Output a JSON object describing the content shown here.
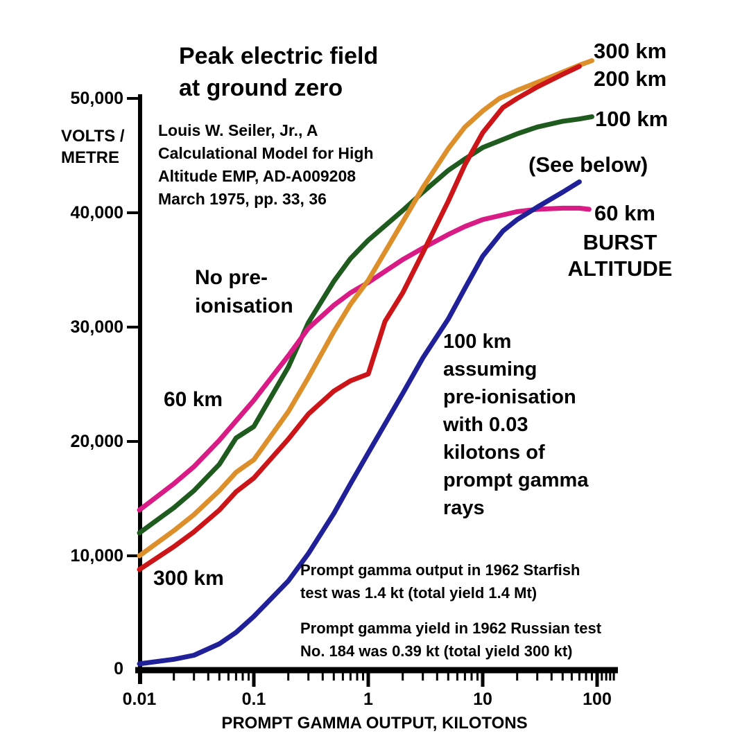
{
  "title": {
    "line1": "Peak electric field",
    "line2": "at ground zero"
  },
  "citation": [
    "Louis W. Seiler, Jr., A",
    "Calculational Model for High",
    "Altitude EMP, AD-A009208",
    "March 1975, pp. 33, 36"
  ],
  "y_axis": {
    "unit_line1": "VOLTS /",
    "unit_line2": "METRE",
    "tick_labels": [
      "50,000",
      "40,000",
      "30,000",
      "20,000",
      "10,000",
      "0"
    ],
    "tick_values": [
      50000,
      40000,
      30000,
      20000,
      10000,
      0
    ]
  },
  "x_axis": {
    "title": "PROMPT GAMMA OUTPUT, KILOTONS",
    "tick_labels": [
      "0.01",
      "0.1",
      "1",
      "10",
      "100"
    ],
    "tick_values": [
      0.01,
      0.1,
      1,
      10,
      100
    ]
  },
  "labels": {
    "no_preionisation_line1": "No pre-",
    "no_preionisation_line2": "ionisation",
    "curve_60km_left": "60 km",
    "curve_300km_left": "300 km",
    "curve_300km_right": "300 km",
    "curve_200km_right": "200 km",
    "curve_100km_right": "100 km",
    "see_below": "(See below)",
    "curve_60km_right": "60 km",
    "burst_line1": "BURST",
    "burst_line2": "ALTITUDE"
  },
  "annotations": {
    "preionisation_lines": [
      "100 km",
      "assuming",
      "pre-ionisation",
      "with 0.03",
      "kilotons of",
      "prompt gamma",
      "rays"
    ],
    "starfish_lines": [
      "Prompt gamma output in 1962 Starfish",
      "test was 1.4 kt (total yield 1.4 Mt)"
    ],
    "russian_lines": [
      "Prompt gamma yield in 1962 Russian test",
      "No. 184 was 0.39 kt (total yield 300 kt)"
    ]
  },
  "chart_data": {
    "type": "line",
    "title": "Peak electric field at ground zero",
    "xlabel": "PROMPT GAMMA OUTPUT, KILOTONS",
    "ylabel": "VOLTS / METRE",
    "x_scale": "log",
    "xlim": [
      0.01,
      150
    ],
    "ylim": [
      0,
      55000
    ],
    "x_ticks": [
      0.01,
      0.1,
      1,
      10,
      100
    ],
    "y_ticks": [
      0,
      10000,
      20000,
      30000,
      40000,
      50000
    ],
    "grid": false,
    "legend_position": "labels-at-line-ends",
    "axis_color": "#000000",
    "series": [
      {
        "id": "curve-100km",
        "name": "100 km burst altitude (no pre-ionisation)",
        "label": "100 km",
        "color": "#1F5B1F",
        "points": [
          [
            0.01,
            12000
          ],
          [
            0.02,
            14200
          ],
          [
            0.03,
            15700
          ],
          [
            0.05,
            18000
          ],
          [
            0.07,
            20300
          ],
          [
            0.1,
            21300
          ],
          [
            0.2,
            26500
          ],
          [
            0.3,
            30400
          ],
          [
            0.5,
            34000
          ],
          [
            0.7,
            36000
          ],
          [
            1,
            37600
          ],
          [
            2,
            40200
          ],
          [
            3,
            41800
          ],
          [
            5,
            43700
          ],
          [
            7,
            44700
          ],
          [
            10,
            45700
          ],
          [
            20,
            46900
          ],
          [
            30,
            47500
          ],
          [
            50,
            48000
          ],
          [
            70,
            48200
          ],
          [
            90,
            48400
          ]
        ]
      },
      {
        "id": "curve-60km",
        "name": "60 km burst altitude",
        "label": "60 km",
        "color": "#D81B85",
        "points": [
          [
            0.01,
            14000
          ],
          [
            0.02,
            16300
          ],
          [
            0.03,
            17800
          ],
          [
            0.05,
            20100
          ],
          [
            0.07,
            21800
          ],
          [
            0.1,
            23600
          ],
          [
            0.2,
            27500
          ],
          [
            0.3,
            29900
          ],
          [
            0.5,
            31900
          ],
          [
            0.7,
            33000
          ],
          [
            1,
            33900
          ],
          [
            2,
            35900
          ],
          [
            3,
            36900
          ],
          [
            5,
            38100
          ],
          [
            7,
            38800
          ],
          [
            10,
            39400
          ],
          [
            20,
            40100
          ],
          [
            30,
            40300
          ],
          [
            50,
            40400
          ],
          [
            70,
            40400
          ],
          [
            85,
            40300
          ]
        ]
      },
      {
        "id": "curve-300km",
        "name": "300 km burst altitude",
        "label": "300 km",
        "color": "#DD8F2B",
        "points": [
          [
            0.01,
            10000
          ],
          [
            0.02,
            12200
          ],
          [
            0.03,
            13600
          ],
          [
            0.05,
            15700
          ],
          [
            0.07,
            17300
          ],
          [
            0.1,
            18400
          ],
          [
            0.2,
            22600
          ],
          [
            0.3,
            25600
          ],
          [
            0.5,
            29600
          ],
          [
            0.7,
            32000
          ],
          [
            1,
            34100
          ],
          [
            2,
            39200
          ],
          [
            3,
            42200
          ],
          [
            5,
            45600
          ],
          [
            7,
            47500
          ],
          [
            10,
            48900
          ],
          [
            14,
            50000
          ],
          [
            20,
            50700
          ],
          [
            30,
            51400
          ],
          [
            50,
            52300
          ],
          [
            70,
            52900
          ],
          [
            90,
            53300
          ]
        ]
      },
      {
        "id": "curve-200km",
        "name": "200 km burst altitude",
        "label": "200 km",
        "color": "#CC1518",
        "points": [
          [
            0.01,
            8800
          ],
          [
            0.02,
            10800
          ],
          [
            0.03,
            12100
          ],
          [
            0.05,
            14000
          ],
          [
            0.07,
            15600
          ],
          [
            0.1,
            16800
          ],
          [
            0.2,
            20200
          ],
          [
            0.3,
            22400
          ],
          [
            0.5,
            24400
          ],
          [
            0.7,
            25300
          ],
          [
            1,
            25900
          ],
          [
            1.4,
            30500
          ],
          [
            2,
            33000
          ],
          [
            3,
            36500
          ],
          [
            5,
            41000
          ],
          [
            7,
            44200
          ],
          [
            10,
            47000
          ],
          [
            15,
            49200
          ],
          [
            20,
            50000
          ],
          [
            30,
            51000
          ],
          [
            50,
            52100
          ],
          [
            70,
            52800
          ]
        ]
      },
      {
        "id": "curve-100km-preionised",
        "name": "100 km assuming pre-ionisation with 0.03 kilotons of prompt gamma rays",
        "label": "(See below)",
        "color": "#202099",
        "points": [
          [
            0.01,
            550
          ],
          [
            0.02,
            950
          ],
          [
            0.03,
            1300
          ],
          [
            0.05,
            2300
          ],
          [
            0.07,
            3300
          ],
          [
            0.1,
            4700
          ],
          [
            0.2,
            7800
          ],
          [
            0.3,
            10200
          ],
          [
            0.5,
            13700
          ],
          [
            0.7,
            16300
          ],
          [
            1,
            19000
          ],
          [
            2,
            24200
          ],
          [
            3,
            27300
          ],
          [
            5,
            30700
          ],
          [
            7,
            33400
          ],
          [
            10,
            36200
          ],
          [
            15,
            38400
          ],
          [
            20,
            39400
          ],
          [
            30,
            40500
          ],
          [
            50,
            41800
          ],
          [
            70,
            42700
          ]
        ]
      }
    ]
  }
}
